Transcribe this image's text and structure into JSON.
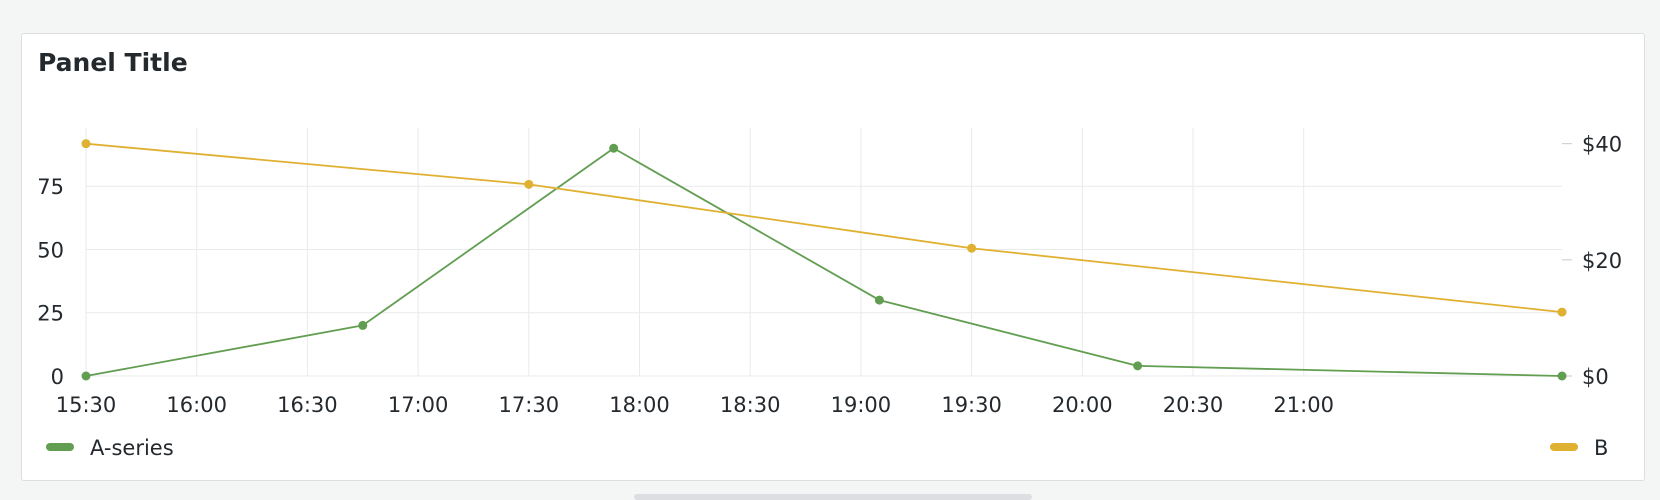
{
  "panel": {
    "title": "Panel Title"
  },
  "chart_data": {
    "type": "line",
    "x_axis": {
      "type": "time",
      "ticks": [
        "15:30",
        "16:00",
        "16:30",
        "17:00",
        "17:30",
        "18:00",
        "18:30",
        "19:00",
        "19:30",
        "20:00",
        "20:30",
        "21:00"
      ],
      "range": [
        "15:30",
        "22:10"
      ]
    },
    "y_axis_left": {
      "ticks": [
        "0",
        "25",
        "50",
        "75"
      ],
      "range": [
        0,
        98
      ]
    },
    "y_axis_right": {
      "ticks": [
        "$0",
        "$20",
        "$40"
      ],
      "range": [
        0,
        42.7
      ]
    },
    "grid": true,
    "legend": [
      {
        "name": "A-series",
        "color": "#629e51",
        "placement": "bottom-left"
      },
      {
        "name": "B",
        "color": "#e0b031",
        "placement": "bottom-right"
      }
    ],
    "series": [
      {
        "name": "A-series",
        "color": "#629e51",
        "axis": "left",
        "points": [
          {
            "x": "15:30",
            "y": 0
          },
          {
            "x": "16:45",
            "y": 20
          },
          {
            "x": "17:53",
            "y": 90
          },
          {
            "x": "19:05",
            "y": 30
          },
          {
            "x": "20:15",
            "y": 4
          },
          {
            "x": "22:10",
            "y": 0
          }
        ]
      },
      {
        "name": "B",
        "color": "#e0b031",
        "axis": "right",
        "points": [
          {
            "x": "15:30",
            "y": 40
          },
          {
            "x": "17:30",
            "y": 33
          },
          {
            "x": "19:30",
            "y": 22
          },
          {
            "x": "22:10",
            "y": 11
          }
        ]
      }
    ]
  }
}
